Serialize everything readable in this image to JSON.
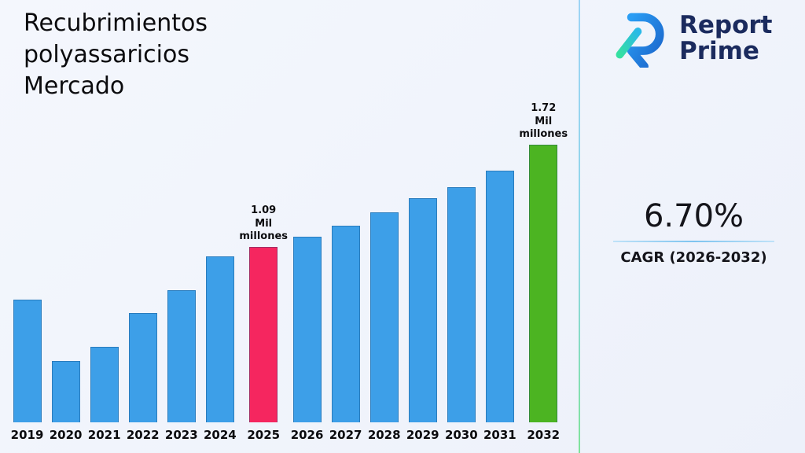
{
  "title": "Recubrimientos\npolyassaricios\nMercado",
  "logo": {
    "line1": "Report",
    "line2": "Prime"
  },
  "stats": {
    "cagr_value": "6.70%",
    "cagr_label": "CAGR (2026-2032)"
  },
  "colors": {
    "bar_blue": "#3d9fe8",
    "accent_pink": "#f5265f",
    "accent_green": "#4cb422",
    "navy": "#1b2b5e"
  },
  "chart_data": {
    "type": "bar",
    "title": "Recubrimientos polyassaricios Mercado",
    "categories": [
      "2019",
      "2020",
      "2021",
      "2022",
      "2023",
      "2024",
      "2025",
      "2026",
      "2027",
      "2028",
      "2029",
      "2030",
      "2031",
      "2032"
    ],
    "values": [
      0.76,
      0.38,
      0.47,
      0.68,
      0.82,
      1.03,
      1.09,
      1.15,
      1.22,
      1.3,
      1.39,
      1.46,
      1.56,
      1.72
    ],
    "unit": "Mil millones",
    "xlabel": "",
    "ylabel": "",
    "ylim": [
      0,
      1.9
    ],
    "grid": false,
    "legend": false,
    "bar_color": "#3d9fe8",
    "highlights": [
      {
        "index": 6,
        "color": "#f5265f",
        "label": "1.09\nMil\nmillones"
      },
      {
        "index": 13,
        "color": "#4cb422",
        "label": "1.72\nMil\nmillones"
      }
    ]
  }
}
